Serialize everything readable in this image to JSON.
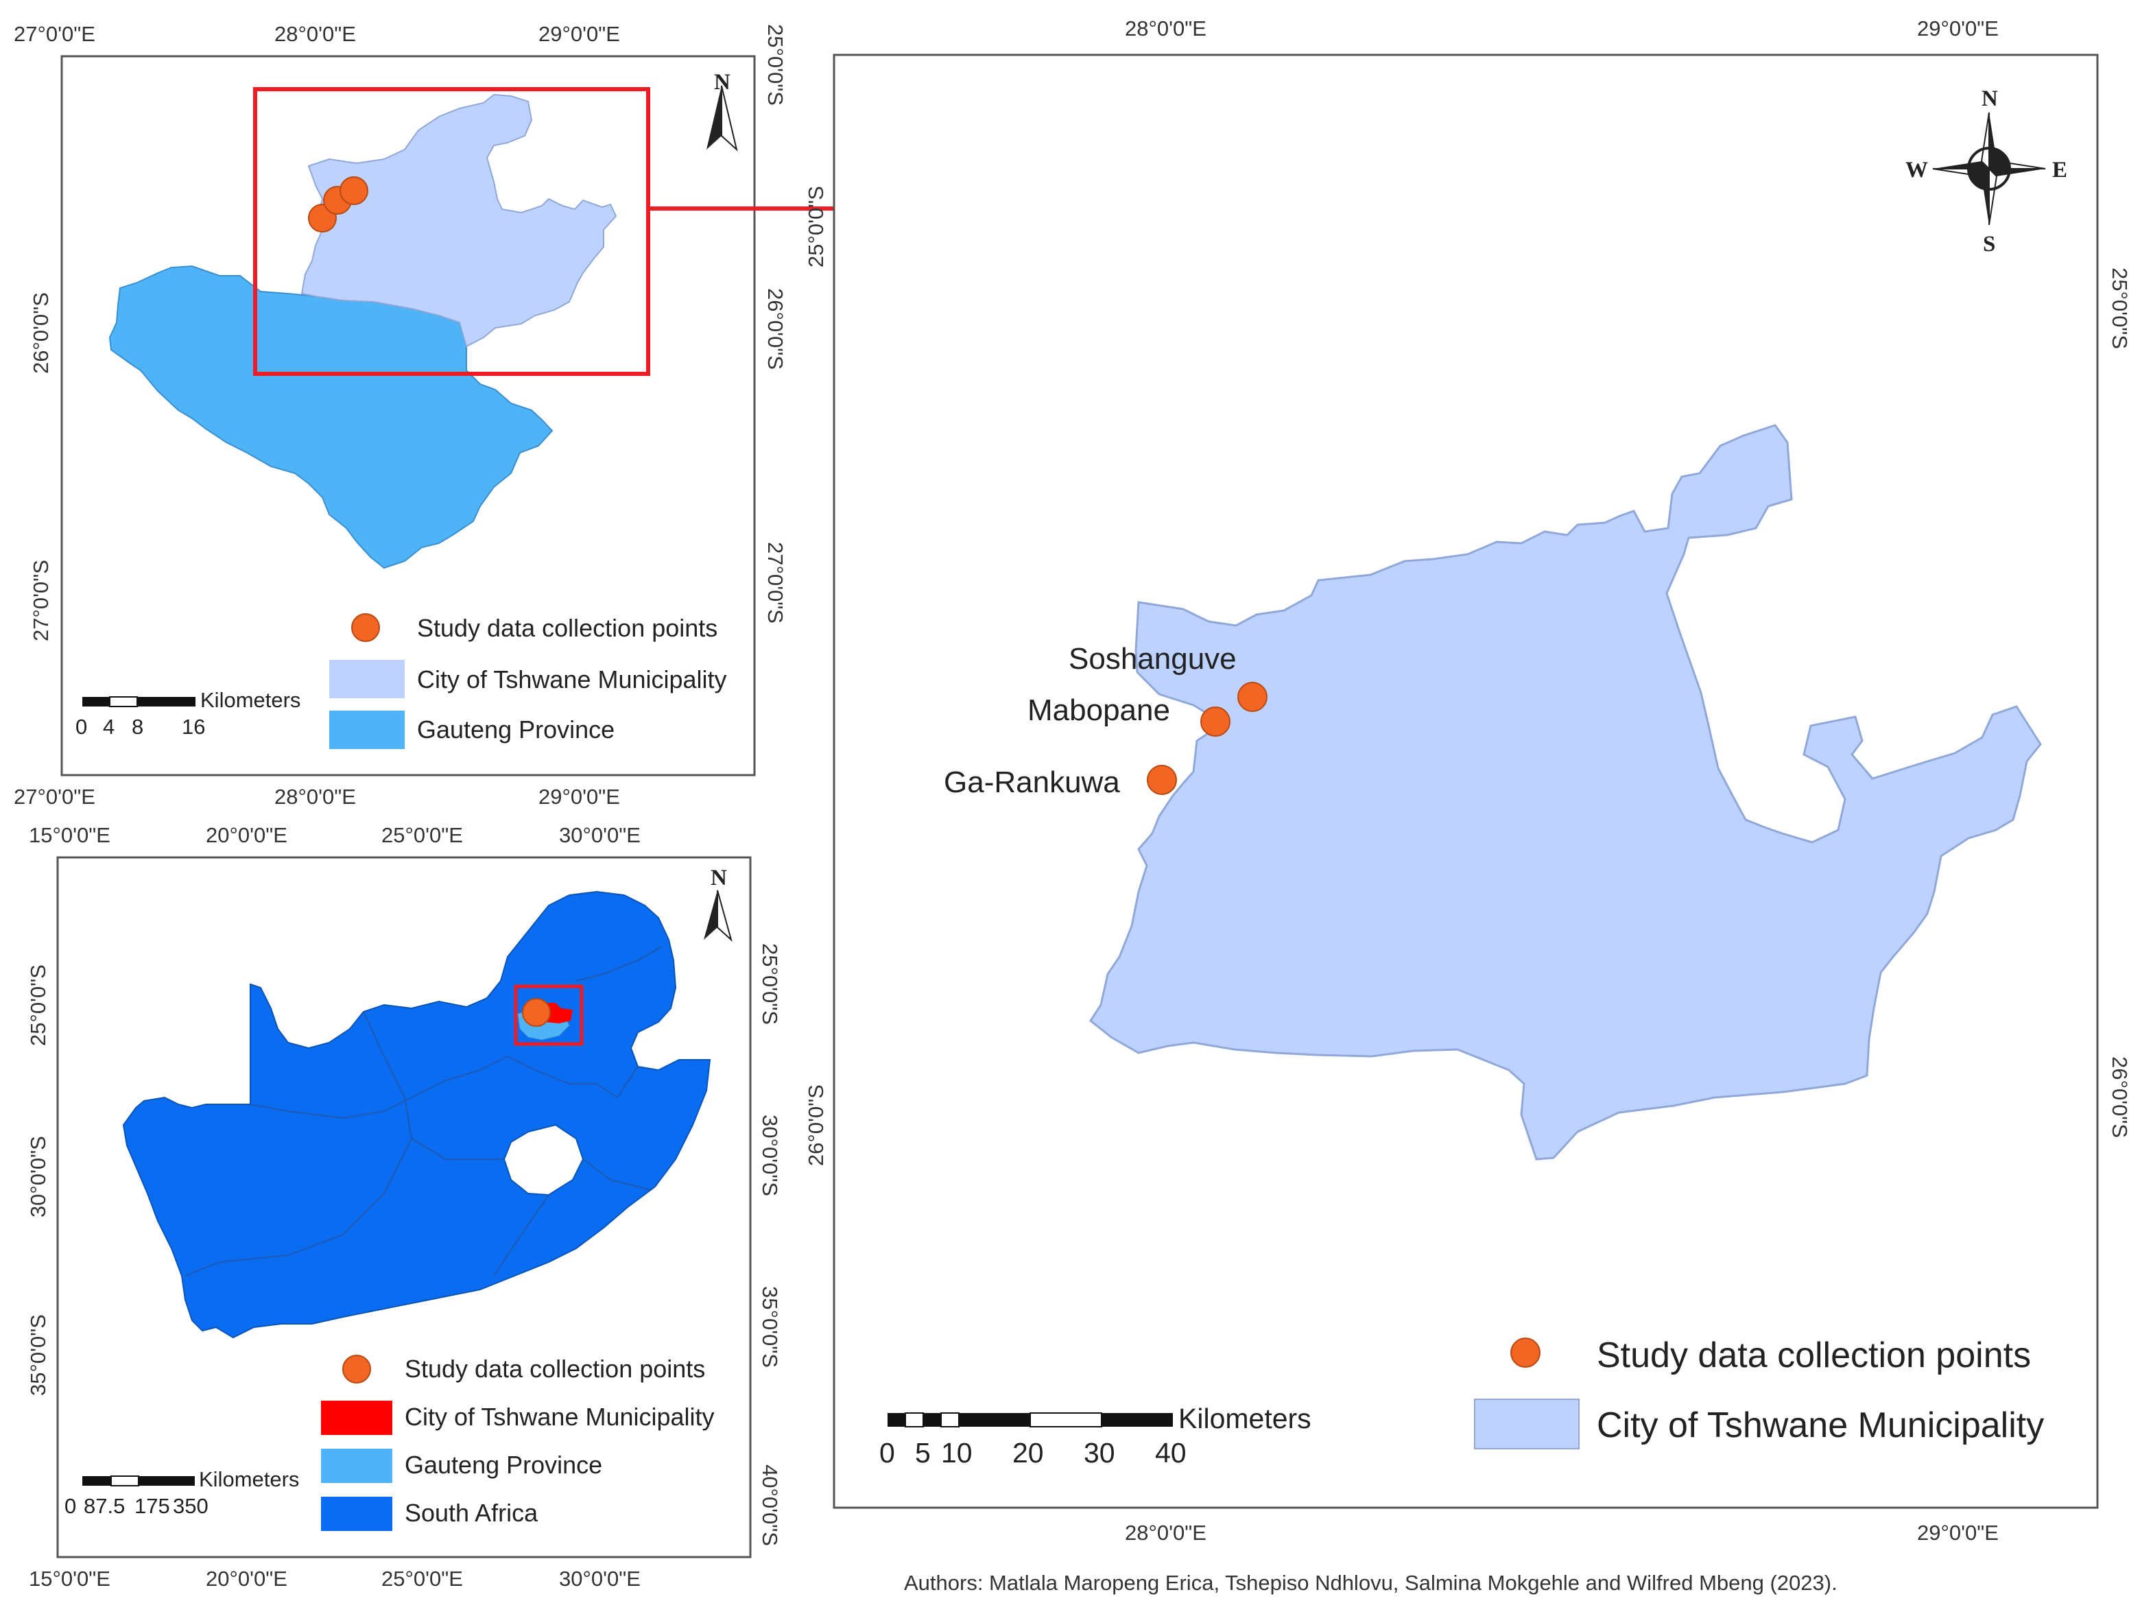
{
  "inset_gauteng": {
    "top_lon_labels": [
      "27°0'0\"E",
      "28°0'0\"E",
      "29°0'0\"E"
    ],
    "bottom_lon_labels": [
      "27°0'0\"E",
      "28°0'0\"E",
      "29°0'0\"E"
    ],
    "left_lat_labels": [
      "26°0'0\"S",
      "27°0'0\"S"
    ],
    "right_lat_labels": [
      "25°0'0\"S",
      "26°0'0\"S",
      "27°0'0\"S"
    ],
    "north_label": "N",
    "legend": [
      {
        "label": "Study data collection points",
        "color": "#f26522"
      },
      {
        "label": "City of Tshwane Municipality",
        "color": "#bed2ff"
      },
      {
        "label": "Gauteng Province",
        "color": "#4fb3f7"
      }
    ],
    "scale_bar": {
      "unit": "Kilometers",
      "ticks": [
        "0",
        "4",
        "8",
        "16"
      ]
    }
  },
  "inset_south_africa": {
    "top_lon_labels": [
      "15°0'0\"E",
      "20°0'0\"E",
      "25°0'0\"E",
      "30°0'0\"E"
    ],
    "bottom_lon_labels": [
      "15°0'0\"E",
      "20°0'0\"E",
      "25°0'0\"E",
      "30°0'0\"E"
    ],
    "left_lat_labels": [
      "25°0'0\"S",
      "30°0'0\"S",
      "35°0'0\"S"
    ],
    "right_lat_labels": [
      "25°0'0\"S",
      "30°0'0\"S",
      "35°0'0\"S",
      "40°0'0\"S"
    ],
    "north_label": "N",
    "legend": [
      {
        "label": "Study data collection points",
        "color": "#f26522"
      },
      {
        "label": "City of Tshwane Municipality",
        "color": "#ff0000"
      },
      {
        "label": "Gauteng Province",
        "color": "#4fb3f7"
      },
      {
        "label": "South Africa",
        "color": "#0a6cf0"
      }
    ],
    "scale_bar": {
      "unit": "Kilometers",
      "ticks": [
        "0",
        "87.5",
        "175",
        "350"
      ]
    }
  },
  "main_map": {
    "top_lon_labels": [
      "28°0'0\"E",
      "29°0'0\"E"
    ],
    "bottom_lon_labels": [
      "28°0'0\"E",
      "29°0'0\"E"
    ],
    "left_lat_labels": [
      "25°0'0\"S",
      "26°0'0\"S"
    ],
    "right_lat_labels": [
      "25°0'0\"S",
      "26°0'0\"S"
    ],
    "compass": {
      "n": "N",
      "s": "S",
      "e": "E",
      "w": "W"
    },
    "places": [
      "Soshanguve",
      "Mabopane",
      "Ga-Rankuwa"
    ],
    "legend": [
      {
        "label": "Study data collection points",
        "color": "#f26522"
      },
      {
        "label": "City of Tshwane Municipality",
        "color": "#bed2ff"
      }
    ],
    "scale_bar": {
      "unit": "Kilometers",
      "ticks": [
        "0",
        "5",
        "10",
        "20",
        "30",
        "40"
      ]
    }
  },
  "colors": {
    "collection_point": "#f26522",
    "tshwane": "#bed2ff",
    "gauteng": "#4fb3f7",
    "south_africa": "#0a6cf0",
    "highlight": "#ee1c24"
  },
  "authors": "Authors: Matlala Maropeng Erica, Tshepiso Ndhlovu, Salmina Mokgehle and Wilfred Mbeng (2023)."
}
